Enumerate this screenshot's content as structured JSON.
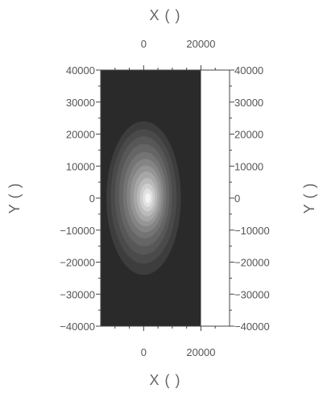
{
  "chart_data": {
    "type": "heatmap",
    "title": "",
    "xlabel": "X (  )",
    "ylabel": "Y (  )",
    "x2label": "X (  )",
    "y2label": "Y (  )",
    "xlim": [
      -15000,
      20000
    ],
    "ylim": [
      -40000,
      40000
    ],
    "plot_xlim": [
      -15000,
      30000
    ],
    "x_ticks": [
      0,
      20000
    ],
    "x_tick_labels": [
      "0",
      "20000"
    ],
    "y_ticks": [
      40000,
      30000,
      20000,
      10000,
      0,
      -10000,
      -20000,
      -30000,
      -40000
    ],
    "y_tick_labels": [
      "40000",
      "30000",
      "20000",
      "10000",
      "0",
      "−10000",
      "−20000",
      "−30000",
      "−40000"
    ],
    "colormap": "grayscale",
    "background_color": "#2a2a2a",
    "grid": false,
    "legend": "none",
    "peak": {
      "x": 1500,
      "y": 0
    },
    "contours": [
      {
        "level": 1,
        "cx": 0,
        "cy": 0,
        "rx": 13000,
        "ry": 24000,
        "color": "#3d3d3d"
      },
      {
        "level": 2,
        "cx": 0,
        "cy": 500,
        "rx": 11500,
        "ry": 21000,
        "color": "#4a4a4a"
      },
      {
        "level": 3,
        "cx": 0,
        "cy": 800,
        "rx": 10000,
        "ry": 18500,
        "color": "#575757"
      },
      {
        "level": 4,
        "cx": 200,
        "cy": 900,
        "rx": 8800,
        "ry": 16000,
        "color": "#656565"
      },
      {
        "level": 5,
        "cx": 400,
        "cy": 900,
        "rx": 7600,
        "ry": 13500,
        "color": "#747474"
      },
      {
        "level": 6,
        "cx": 600,
        "cy": 800,
        "rx": 6500,
        "ry": 11500,
        "color": "#848484"
      },
      {
        "level": 7,
        "cx": 800,
        "cy": 700,
        "rx": 5500,
        "ry": 9500,
        "color": "#959595"
      },
      {
        "level": 8,
        "cx": 1000,
        "cy": 500,
        "rx": 4500,
        "ry": 7800,
        "color": "#a7a7a7"
      },
      {
        "level": 9,
        "cx": 1200,
        "cy": 300,
        "rx": 3500,
        "ry": 6000,
        "color": "#bababa"
      },
      {
        "level": 10,
        "cx": 1300,
        "cy": 200,
        "rx": 2600,
        "ry": 4400,
        "color": "#cecece"
      },
      {
        "level": 11,
        "cx": 1400,
        "cy": 100,
        "rx": 1700,
        "ry": 2900,
        "color": "#e2e2e2"
      },
      {
        "level": 12,
        "cx": 1500,
        "cy": 0,
        "rx": 900,
        "ry": 1500,
        "color": "#f4f4f4"
      }
    ]
  }
}
